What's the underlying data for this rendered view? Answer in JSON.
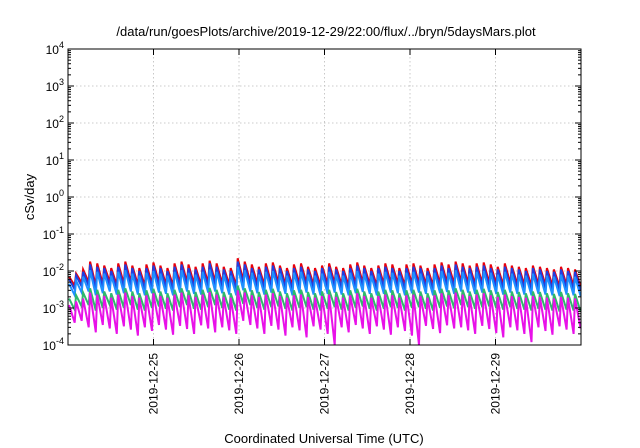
{
  "chart_data": {
    "type": "line",
    "title": "/data/run/goesPlots/archive/2019-12-29/22:00/flux/../bryn/5daysMars.plot",
    "xlabel": "Coordinated Universal Time (UTC)",
    "ylabel": "cSv/day",
    "xlim": [
      "2019-12-24 00:00",
      "2019-12-30 00:00"
    ],
    "ylim": [
      0.0001,
      10000
    ],
    "yscale": "log",
    "grid": true,
    "legend": "none",
    "x_ticks": [
      "2019-12-25",
      "2019-12-26",
      "2019-12-27",
      "2019-12-28",
      "2019-12-29"
    ],
    "y_ticks": [
      {
        "value": 0.0001,
        "base": "10",
        "exp": "-4"
      },
      {
        "value": 0.001,
        "base": "10",
        "exp": "-3"
      },
      {
        "value": 0.01,
        "base": "10",
        "exp": "-2"
      },
      {
        "value": 0.1,
        "base": "10",
        "exp": "-1"
      },
      {
        "value": 1,
        "base": "10",
        "exp": "0"
      },
      {
        "value": 10,
        "base": "10",
        "exp": "1"
      },
      {
        "value": 100,
        "base": "10",
        "exp": "2"
      },
      {
        "value": 1000,
        "base": "10",
        "exp": "3"
      },
      {
        "value": 10000,
        "base": "10",
        "exp": "4"
      }
    ],
    "series": [
      {
        "color": "#e8000b",
        "peak_values": [
          0.007,
          0.0085,
          0.011,
          0.018,
          0.016,
          0.014,
          0.012,
          0.016,
          0.018,
          0.014,
          0.012,
          0.015,
          0.017,
          0.014,
          0.012,
          0.016,
          0.018,
          0.015,
          0.013,
          0.016,
          0.019,
          0.016,
          0.013,
          0.012,
          0.022,
          0.018,
          0.015,
          0.013,
          0.016,
          0.017,
          0.014,
          0.012,
          0.015,
          0.016,
          0.013,
          0.012,
          0.014,
          0.016,
          0.013,
          0.012,
          0.015,
          0.017,
          0.014,
          0.012,
          0.014,
          0.016,
          0.015,
          0.012,
          0.015,
          0.016,
          0.014,
          0.012,
          0.015,
          0.017,
          0.015,
          0.018,
          0.016,
          0.014,
          0.016,
          0.017,
          0.015,
          0.013,
          0.016,
          0.014,
          0.013,
          0.012,
          0.014,
          0.013,
          0.012,
          0.011,
          0.013,
          0.012,
          0.011
        ],
        "trough_values": [
          0.004,
          0.0048,
          0.005,
          0.004,
          0.0045,
          0.005,
          0.0042,
          0.0045,
          0.005,
          0.0042,
          0.004,
          0.0045,
          0.0048,
          0.0043,
          0.004,
          0.0046,
          0.005,
          0.0044,
          0.0041,
          0.0047,
          0.005,
          0.0045,
          0.0042,
          0.004,
          0.0055,
          0.005,
          0.0045,
          0.0042,
          0.0046,
          0.0048,
          0.0043,
          0.004,
          0.0045,
          0.0047,
          0.0042,
          0.004,
          0.0044,
          0.0046,
          0.0042,
          0.004,
          0.0045,
          0.0048,
          0.0043,
          0.004,
          0.0044,
          0.0046,
          0.0045,
          0.004,
          0.0045,
          0.0046,
          0.0043,
          0.004,
          0.0045,
          0.0048,
          0.0044,
          0.005,
          0.0046,
          0.0043,
          0.0046,
          0.0047,
          0.0044,
          0.0041,
          0.0046,
          0.0043,
          0.0042,
          0.004,
          0.0043,
          0.0042,
          0.004,
          0.0038,
          0.0042,
          0.004,
          0.0038
        ]
      },
      {
        "color": "#1f3fe0",
        "peak_values": [
          0.006,
          0.0075,
          0.0095,
          0.015,
          0.013,
          0.012,
          0.01,
          0.013,
          0.015,
          0.012,
          0.01,
          0.012,
          0.014,
          0.012,
          0.01,
          0.013,
          0.015,
          0.012,
          0.011,
          0.013,
          0.016,
          0.013,
          0.011,
          0.01,
          0.018,
          0.015,
          0.012,
          0.011,
          0.013,
          0.014,
          0.012,
          0.01,
          0.012,
          0.013,
          0.011,
          0.01,
          0.012,
          0.013,
          0.011,
          0.01,
          0.012,
          0.014,
          0.012,
          0.01,
          0.012,
          0.013,
          0.012,
          0.01,
          0.012,
          0.013,
          0.012,
          0.01,
          0.012,
          0.014,
          0.012,
          0.015,
          0.013,
          0.012,
          0.013,
          0.014,
          0.012,
          0.011,
          0.013,
          0.012,
          0.011,
          0.01,
          0.012,
          0.011,
          0.01,
          0.0095,
          0.011,
          0.01,
          0.0095
        ],
        "trough_values": [
          0.0032,
          0.0038,
          0.004,
          0.0032,
          0.0036,
          0.004,
          0.0034,
          0.0036,
          0.004,
          0.0034,
          0.0032,
          0.0036,
          0.0038,
          0.0034,
          0.0032,
          0.0037,
          0.004,
          0.0035,
          0.0033,
          0.0037,
          0.004,
          0.0036,
          0.0034,
          0.0032,
          0.0044,
          0.004,
          0.0036,
          0.0034,
          0.0037,
          0.0038,
          0.0034,
          0.0032,
          0.0036,
          0.0037,
          0.0034,
          0.0032,
          0.0035,
          0.0037,
          0.0034,
          0.0032,
          0.0036,
          0.0038,
          0.0034,
          0.0032,
          0.0035,
          0.0037,
          0.0036,
          0.0032,
          0.0036,
          0.0037,
          0.0034,
          0.0032,
          0.0036,
          0.0038,
          0.0035,
          0.004,
          0.0037,
          0.0034,
          0.0037,
          0.0038,
          0.0035,
          0.0033,
          0.0037,
          0.0034,
          0.0034,
          0.0032,
          0.0034,
          0.0034,
          0.0032,
          0.003,
          0.0034,
          0.0032,
          0.003
        ]
      },
      {
        "color": "#1e90ff",
        "peak_values": [
          0.0045,
          0.0055,
          0.007,
          0.0105,
          0.0095,
          0.0085,
          0.0075,
          0.0095,
          0.0105,
          0.0085,
          0.0075,
          0.009,
          0.01,
          0.0085,
          0.0075,
          0.0095,
          0.0105,
          0.009,
          0.008,
          0.0095,
          0.011,
          0.0095,
          0.008,
          0.0075,
          0.013,
          0.0105,
          0.009,
          0.008,
          0.0095,
          0.01,
          0.0085,
          0.0075,
          0.009,
          0.0095,
          0.008,
          0.0075,
          0.0085,
          0.0095,
          0.008,
          0.0075,
          0.009,
          0.01,
          0.0085,
          0.0075,
          0.0085,
          0.0095,
          0.009,
          0.0075,
          0.009,
          0.0095,
          0.0085,
          0.0075,
          0.009,
          0.01,
          0.009,
          0.0105,
          0.0095,
          0.0085,
          0.0095,
          0.01,
          0.009,
          0.008,
          0.0095,
          0.0085,
          0.008,
          0.0075,
          0.0085,
          0.008,
          0.0075,
          0.007,
          0.008,
          0.0075,
          0.007
        ],
        "trough_values": [
          0.0022,
          0.0026,
          0.0028,
          0.0022,
          0.0025,
          0.0028,
          0.0023,
          0.0025,
          0.0028,
          0.0023,
          0.0022,
          0.0025,
          0.0026,
          0.0024,
          0.0022,
          0.0026,
          0.0028,
          0.0024,
          0.0023,
          0.0026,
          0.0028,
          0.0025,
          0.0023,
          0.0022,
          0.003,
          0.0028,
          0.0025,
          0.0023,
          0.0026,
          0.0027,
          0.0024,
          0.0022,
          0.0025,
          0.0026,
          0.0023,
          0.0022,
          0.0024,
          0.0026,
          0.0023,
          0.0022,
          0.0025,
          0.0027,
          0.0024,
          0.0022,
          0.0024,
          0.0026,
          0.0025,
          0.0022,
          0.0025,
          0.0026,
          0.0024,
          0.0022,
          0.0025,
          0.0027,
          0.0024,
          0.0028,
          0.0026,
          0.0024,
          0.0026,
          0.0027,
          0.0024,
          0.0023,
          0.0026,
          0.0024,
          0.0023,
          0.0022,
          0.0024,
          0.0023,
          0.0022,
          0.0021,
          0.0023,
          0.0022,
          0.0021
        ]
      },
      {
        "color": "#2fb86c",
        "peak_values": [
          0.0018,
          0.0022,
          0.0026,
          0.0034,
          0.0031,
          0.0028,
          0.0025,
          0.0031,
          0.0034,
          0.0028,
          0.0025,
          0.003,
          0.0033,
          0.0028,
          0.0025,
          0.0031,
          0.0034,
          0.003,
          0.0027,
          0.0031,
          0.0035,
          0.0031,
          0.0027,
          0.0025,
          0.004,
          0.0034,
          0.003,
          0.0027,
          0.0031,
          0.0033,
          0.0028,
          0.0025,
          0.003,
          0.0031,
          0.0027,
          0.0025,
          0.0028,
          0.0031,
          0.0027,
          0.0025,
          0.003,
          0.0033,
          0.0028,
          0.0025,
          0.0028,
          0.0031,
          0.003,
          0.0025,
          0.003,
          0.0031,
          0.0028,
          0.0025,
          0.003,
          0.0033,
          0.003,
          0.0034,
          0.0031,
          0.0028,
          0.0031,
          0.0033,
          0.003,
          0.0027,
          0.0031,
          0.0028,
          0.0027,
          0.0025,
          0.0028,
          0.0027,
          0.0025,
          0.0024,
          0.0027,
          0.0025,
          0.0024
        ],
        "trough_values": [
          0.0009,
          0.0011,
          0.0012,
          0.00085,
          0.001,
          0.0012,
          0.0009,
          0.001,
          0.0012,
          0.0009,
          0.00085,
          0.001,
          0.0011,
          0.00095,
          0.00085,
          0.00105,
          0.0012,
          0.00095,
          0.0009,
          0.00105,
          0.0012,
          0.001,
          0.0009,
          0.00085,
          0.0013,
          0.0012,
          0.001,
          0.0009,
          0.00105,
          0.0011,
          0.00095,
          0.00085,
          0.001,
          0.00105,
          0.0009,
          0.00085,
          0.00095,
          0.00105,
          0.0009,
          0.00085,
          0.001,
          0.0011,
          0.00095,
          0.00085,
          0.00095,
          0.00105,
          0.001,
          0.00085,
          0.001,
          0.00105,
          0.00095,
          0.00085,
          0.001,
          0.0011,
          0.00098,
          0.0012,
          0.00105,
          0.00095,
          0.00105,
          0.0011,
          0.00098,
          0.0009,
          0.00105,
          0.00095,
          0.0009,
          0.00085,
          0.00095,
          0.0009,
          0.00085,
          0.0008,
          0.0009,
          0.00085,
          0.0008
        ]
      },
      {
        "color": "#e811e8",
        "peak_values": [
          0.0012,
          0.0015,
          0.0018,
          0.0026,
          0.0023,
          0.0021,
          0.0019,
          0.0023,
          0.0026,
          0.0021,
          0.0019,
          0.0022,
          0.0025,
          0.0021,
          0.0019,
          0.0023,
          0.0026,
          0.0022,
          0.002,
          0.0023,
          0.0027,
          0.0023,
          0.002,
          0.0019,
          0.003,
          0.0026,
          0.0022,
          0.002,
          0.0023,
          0.0025,
          0.0021,
          0.0019,
          0.0022,
          0.0023,
          0.002,
          0.0019,
          0.0021,
          0.0023,
          0.002,
          0.0019,
          0.0022,
          0.0025,
          0.0021,
          0.0019,
          0.0021,
          0.0023,
          0.0022,
          0.0019,
          0.0022,
          0.0023,
          0.0021,
          0.0019,
          0.0022,
          0.0025,
          0.0022,
          0.0026,
          0.0023,
          0.0021,
          0.0023,
          0.0025,
          0.0022,
          0.002,
          0.0023,
          0.0021,
          0.002,
          0.0019,
          0.0021,
          0.002,
          0.0019,
          0.0018,
          0.002,
          0.0019,
          0.0018
        ],
        "trough_values": [
          0.0004,
          0.00045,
          0.0003,
          0.00022,
          0.00035,
          0.00028,
          0.0002,
          0.00032,
          0.00026,
          0.00018,
          0.0003,
          0.00024,
          0.00035,
          0.00026,
          0.00019,
          0.00033,
          0.00027,
          0.0002,
          0.00034,
          0.00028,
          0.00022,
          0.0003,
          0.00025,
          0.0002,
          0.00045,
          0.00035,
          0.00028,
          0.0002,
          0.00033,
          0.00026,
          0.00018,
          0.0003,
          0.00025,
          0.00016,
          0.00032,
          0.00026,
          0.0002,
          0.0001,
          0.0003,
          0.00022,
          0.00035,
          0.00028,
          0.0002,
          0.00032,
          0.00026,
          0.00019,
          0.0003,
          0.00024,
          0.00018,
          0.0001,
          0.00033,
          0.00027,
          0.00021,
          0.00034,
          0.00028,
          0.0003,
          0.00025,
          0.0002,
          0.00033,
          0.00027,
          0.00021,
          0.00016,
          0.0003,
          0.00025,
          0.0002,
          0.00012,
          0.0003,
          0.00024,
          0.00019,
          0.00032,
          0.00026,
          0.0002,
          0.00028
        ]
      }
    ]
  }
}
